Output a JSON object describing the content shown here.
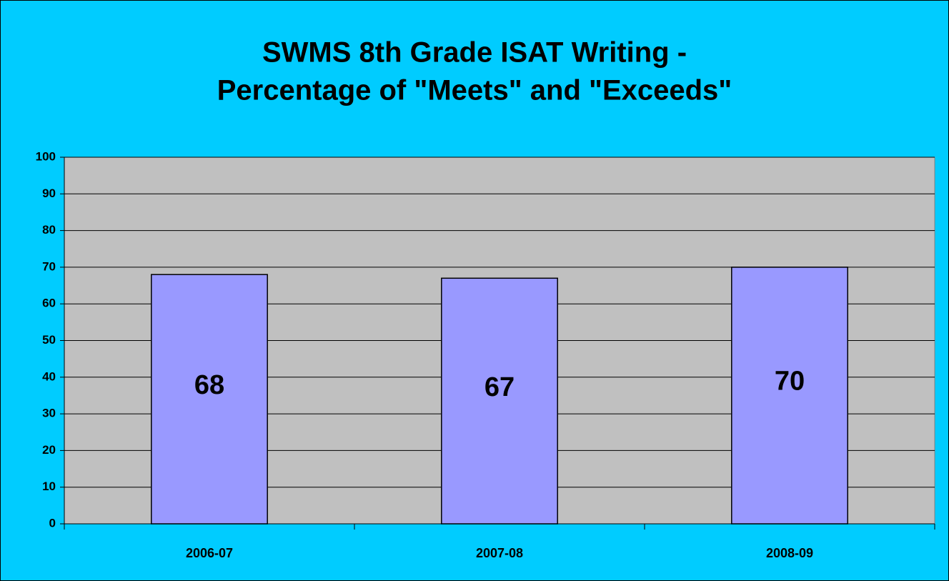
{
  "chart_data": {
    "type": "bar",
    "title": [
      "SWMS 8th Grade ISAT Writing -",
      "Percentage of  \"Meets\" and \"Exceeds\""
    ],
    "categories": [
      "2006-07",
      "2007-08",
      "2008-09"
    ],
    "values": [
      68,
      67,
      70
    ],
    "color": "#9999ff",
    "ylim": [
      0,
      100
    ],
    "yticks": [
      0,
      10,
      20,
      30,
      40,
      50,
      60,
      70,
      80,
      90,
      100
    ],
    "grid": true
  }
}
